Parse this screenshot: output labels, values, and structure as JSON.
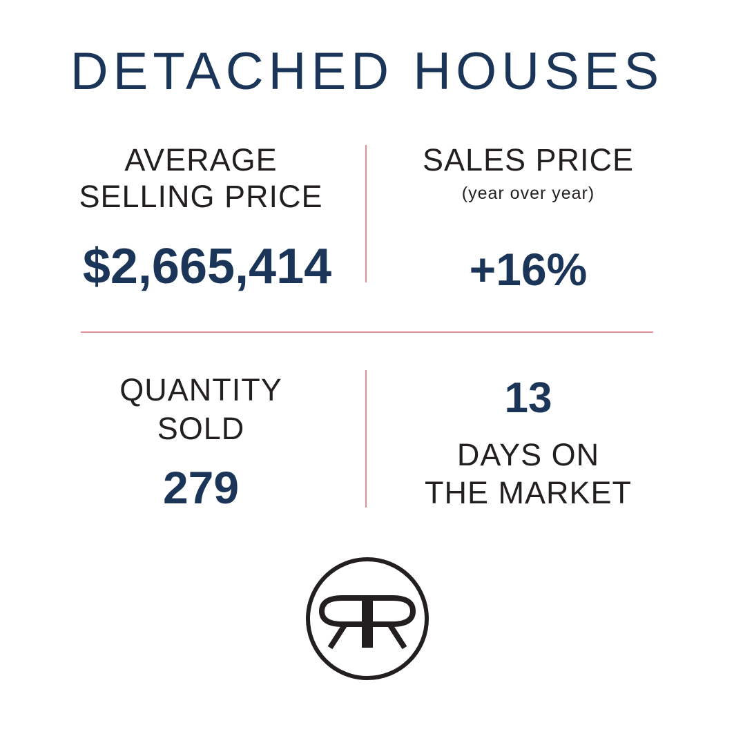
{
  "title": "DETACHED HOUSES",
  "stats": {
    "avg_price": {
      "label_line1": "AVERAGE",
      "label_line2": "SELLING PRICE",
      "value": "$2,665,414"
    },
    "sales_price": {
      "label": "SALES PRICE",
      "sublabel": "(year over year)",
      "value": "+16%"
    },
    "quantity": {
      "label_line1": "QUANTITY",
      "label_line2": "SOLD",
      "value": "279"
    },
    "days": {
      "value": "13",
      "label_line1": "DAYS ON",
      "label_line2": "THE MARKET"
    }
  },
  "logo": {
    "icon": "rr-monogram-icon",
    "text": "RR"
  },
  "colors": {
    "navy": "#1b3558",
    "text": "#231f20",
    "divider": "#e58c9b"
  }
}
